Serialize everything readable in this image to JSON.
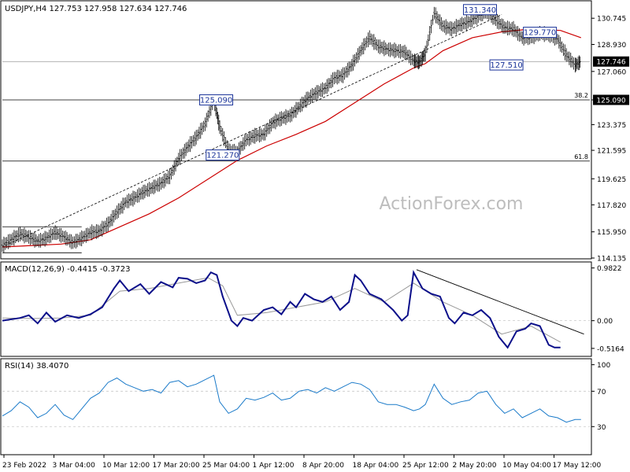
{
  "watermark": "ActionForex.com",
  "chart_data": [
    {
      "type": "line",
      "panel": "price",
      "header": "USDJPY,H4  127.753 127.958 127.634 127.746",
      "ylim": [
        114.135,
        131.9
      ],
      "y_ticks": [
        "130.745",
        "128.930",
        "127.060",
        "125.090",
        "123.375",
        "121.595",
        "119.625",
        "117.820",
        "115.950",
        "114.135"
      ],
      "current_price": "127.746",
      "retracement_price": "125.090",
      "levels": [
        {
          "label": "38.2",
          "value": 125.09
        },
        {
          "label": "61.8",
          "value": 120.85
        }
      ],
      "annotations": [
        {
          "text": "131.340",
          "x": 0.813,
          "y": 131.34
        },
        {
          "text": "129.770",
          "x": 0.915,
          "y": 129.77
        },
        {
          "text": "127.510",
          "x": 0.858,
          "y": 127.51
        },
        {
          "text": "125.090",
          "x": 0.364,
          "y": 125.09
        },
        {
          "text": "121.270",
          "x": 0.375,
          "y": 121.27
        }
      ],
      "price_series": [
        [
          0,
          115.0
        ],
        [
          0.015,
          115.4
        ],
        [
          0.03,
          115.8
        ],
        [
          0.045,
          115.6
        ],
        [
          0.06,
          115.3
        ],
        [
          0.075,
          115.5
        ],
        [
          0.09,
          115.9
        ],
        [
          0.105,
          115.6
        ],
        [
          0.12,
          115.2
        ],
        [
          0.135,
          115.5
        ],
        [
          0.15,
          115.9
        ],
        [
          0.165,
          116.0
        ],
        [
          0.18,
          116.5
        ],
        [
          0.195,
          117.3
        ],
        [
          0.21,
          118.0
        ],
        [
          0.225,
          118.3
        ],
        [
          0.24,
          118.7
        ],
        [
          0.255,
          119.0
        ],
        [
          0.27,
          119.3
        ],
        [
          0.285,
          119.8
        ],
        [
          0.3,
          121.0
        ],
        [
          0.315,
          121.8
        ],
        [
          0.33,
          122.5
        ],
        [
          0.345,
          123.4
        ],
        [
          0.36,
          125.1
        ],
        [
          0.37,
          123.2
        ],
        [
          0.385,
          121.6
        ],
        [
          0.4,
          121.5
        ],
        [
          0.415,
          122.3
        ],
        [
          0.43,
          122.6
        ],
        [
          0.445,
          122.7
        ],
        [
          0.46,
          123.5
        ],
        [
          0.475,
          123.8
        ],
        [
          0.49,
          124.0
        ],
        [
          0.505,
          124.6
        ],
        [
          0.52,
          125.2
        ],
        [
          0.535,
          125.6
        ],
        [
          0.55,
          125.9
        ],
        [
          0.565,
          126.6
        ],
        [
          0.58,
          126.8
        ],
        [
          0.595,
          127.5
        ],
        [
          0.61,
          128.5
        ],
        [
          0.625,
          129.4
        ],
        [
          0.64,
          128.8
        ],
        [
          0.655,
          128.6
        ],
        [
          0.67,
          128.5
        ],
        [
          0.685,
          128.4
        ],
        [
          0.7,
          127.8
        ],
        [
          0.71,
          127.7
        ],
        [
          0.72,
          128.3
        ],
        [
          0.735,
          131.1
        ],
        [
          0.75,
          130.2
        ],
        [
          0.765,
          130.0
        ],
        [
          0.78,
          130.3
        ],
        [
          0.795,
          130.5
        ],
        [
          0.81,
          130.9
        ],
        [
          0.825,
          131.2
        ],
        [
          0.84,
          130.6
        ],
        [
          0.855,
          130.1
        ],
        [
          0.87,
          130.0
        ],
        [
          0.885,
          129.4
        ],
        [
          0.9,
          129.4
        ],
        [
          0.915,
          129.7
        ],
        [
          0.93,
          129.6
        ],
        [
          0.945,
          129.3
        ],
        [
          0.96,
          128.2
        ],
        [
          0.975,
          127.5
        ],
        [
          0.985,
          127.75
        ]
      ],
      "ma_series": [
        [
          0,
          114.9
        ],
        [
          0.05,
          115.0
        ],
        [
          0.1,
          115.1
        ],
        [
          0.15,
          115.4
        ],
        [
          0.2,
          116.3
        ],
        [
          0.25,
          117.2
        ],
        [
          0.3,
          118.3
        ],
        [
          0.35,
          119.6
        ],
        [
          0.4,
          120.9
        ],
        [
          0.45,
          121.9
        ],
        [
          0.5,
          122.7
        ],
        [
          0.55,
          123.6
        ],
        [
          0.6,
          124.9
        ],
        [
          0.65,
          126.2
        ],
        [
          0.7,
          127.3
        ],
        [
          0.72,
          127.6
        ],
        [
          0.75,
          128.5
        ],
        [
          0.8,
          129.4
        ],
        [
          0.85,
          129.8
        ],
        [
          0.9,
          130.0
        ],
        [
          0.95,
          129.9
        ],
        [
          0.985,
          129.4
        ]
      ],
      "trendline": [
        [
          0.005,
          115.0
        ],
        [
          0.85,
          131.0
        ]
      ],
      "channel": [
        [
          [
            0.0,
            116.3
          ],
          [
            0.135,
            116.3
          ]
        ],
        [
          [
            0.0,
            114.5
          ],
          [
            0.135,
            114.5
          ]
        ]
      ]
    },
    {
      "type": "line",
      "panel": "macd",
      "header": "MACD(12,26,9) -0.4415 -0.3723",
      "ylim": [
        -0.65,
        1.05
      ],
      "y_ticks": [
        "0.9822",
        "0.00",
        "-0.5164"
      ],
      "macd_series": [
        [
          0,
          0.0
        ],
        [
          0.03,
          0.05
        ],
        [
          0.045,
          0.1
        ],
        [
          0.06,
          -0.05
        ],
        [
          0.075,
          0.15
        ],
        [
          0.09,
          -0.02
        ],
        [
          0.11,
          0.1
        ],
        [
          0.13,
          0.05
        ],
        [
          0.15,
          0.12
        ],
        [
          0.17,
          0.25
        ],
        [
          0.19,
          0.6
        ],
        [
          0.2,
          0.75
        ],
        [
          0.215,
          0.55
        ],
        [
          0.235,
          0.68
        ],
        [
          0.25,
          0.5
        ],
        [
          0.27,
          0.72
        ],
        [
          0.29,
          0.62
        ],
        [
          0.3,
          0.8
        ],
        [
          0.315,
          0.78
        ],
        [
          0.33,
          0.7
        ],
        [
          0.345,
          0.75
        ],
        [
          0.355,
          0.9
        ],
        [
          0.365,
          0.85
        ],
        [
          0.375,
          0.45
        ],
        [
          0.39,
          0.0
        ],
        [
          0.4,
          -0.1
        ],
        [
          0.41,
          0.05
        ],
        [
          0.425,
          0.0
        ],
        [
          0.445,
          0.2
        ],
        [
          0.46,
          0.25
        ],
        [
          0.475,
          0.12
        ],
        [
          0.49,
          0.35
        ],
        [
          0.5,
          0.25
        ],
        [
          0.515,
          0.5
        ],
        [
          0.53,
          0.4
        ],
        [
          0.545,
          0.35
        ],
        [
          0.56,
          0.45
        ],
        [
          0.575,
          0.2
        ],
        [
          0.59,
          0.35
        ],
        [
          0.6,
          0.85
        ],
        [
          0.61,
          0.75
        ],
        [
          0.625,
          0.5
        ],
        [
          0.645,
          0.4
        ],
        [
          0.665,
          0.2
        ],
        [
          0.68,
          0.0
        ],
        [
          0.69,
          0.1
        ],
        [
          0.7,
          0.9
        ],
        [
          0.715,
          0.6
        ],
        [
          0.73,
          0.5
        ],
        [
          0.745,
          0.45
        ],
        [
          0.76,
          0.05
        ],
        [
          0.77,
          -0.05
        ],
        [
          0.785,
          0.15
        ],
        [
          0.8,
          0.1
        ],
        [
          0.815,
          0.2
        ],
        [
          0.83,
          0.05
        ],
        [
          0.845,
          -0.3
        ],
        [
          0.86,
          -0.5
        ],
        [
          0.875,
          -0.2
        ],
        [
          0.89,
          -0.15
        ],
        [
          0.9,
          -0.05
        ],
        [
          0.915,
          -0.1
        ],
        [
          0.93,
          -0.45
        ],
        [
          0.94,
          -0.5
        ],
        [
          0.95,
          -0.5
        ]
      ],
      "signal_series": [
        [
          0,
          0.05
        ],
        [
          0.05,
          0.04
        ],
        [
          0.1,
          0.05
        ],
        [
          0.15,
          0.1
        ],
        [
          0.2,
          0.55
        ],
        [
          0.25,
          0.6
        ],
        [
          0.3,
          0.7
        ],
        [
          0.35,
          0.8
        ],
        [
          0.375,
          0.65
        ],
        [
          0.4,
          0.1
        ],
        [
          0.45,
          0.15
        ],
        [
          0.5,
          0.25
        ],
        [
          0.55,
          0.35
        ],
        [
          0.6,
          0.6
        ],
        [
          0.65,
          0.35
        ],
        [
          0.7,
          0.7
        ],
        [
          0.75,
          0.35
        ],
        [
          0.8,
          0.1
        ],
        [
          0.85,
          -0.25
        ],
        [
          0.9,
          -0.1
        ],
        [
          0.95,
          -0.4
        ]
      ],
      "trendline": [
        [
          0.705,
          0.95
        ],
        [
          0.99,
          -0.25
        ]
      ]
    },
    {
      "type": "line",
      "panel": "rsi",
      "header": "RSI(14) 38.4070",
      "ylim": [
        0,
        105
      ],
      "y_ticks": [
        "100",
        "70",
        "30"
      ],
      "levels": [
        70,
        30
      ],
      "rsi_series": [
        [
          0,
          42
        ],
        [
          0.015,
          48
        ],
        [
          0.03,
          58
        ],
        [
          0.045,
          52
        ],
        [
          0.06,
          40
        ],
        [
          0.075,
          45
        ],
        [
          0.09,
          55
        ],
        [
          0.105,
          43
        ],
        [
          0.12,
          38
        ],
        [
          0.135,
          50
        ],
        [
          0.15,
          62
        ],
        [
          0.165,
          68
        ],
        [
          0.18,
          80
        ],
        [
          0.195,
          85
        ],
        [
          0.21,
          78
        ],
        [
          0.225,
          74
        ],
        [
          0.24,
          70
        ],
        [
          0.255,
          72
        ],
        [
          0.27,
          68
        ],
        [
          0.285,
          80
        ],
        [
          0.3,
          82
        ],
        [
          0.315,
          75
        ],
        [
          0.33,
          78
        ],
        [
          0.345,
          83
        ],
        [
          0.36,
          88
        ],
        [
          0.37,
          58
        ],
        [
          0.385,
          45
        ],
        [
          0.4,
          50
        ],
        [
          0.415,
          62
        ],
        [
          0.43,
          60
        ],
        [
          0.445,
          63
        ],
        [
          0.46,
          68
        ],
        [
          0.475,
          60
        ],
        [
          0.49,
          62
        ],
        [
          0.505,
          70
        ],
        [
          0.52,
          72
        ],
        [
          0.535,
          68
        ],
        [
          0.55,
          74
        ],
        [
          0.565,
          70
        ],
        [
          0.58,
          75
        ],
        [
          0.595,
          80
        ],
        [
          0.61,
          78
        ],
        [
          0.625,
          72
        ],
        [
          0.64,
          58
        ],
        [
          0.655,
          55
        ],
        [
          0.67,
          55
        ],
        [
          0.685,
          52
        ],
        [
          0.7,
          48
        ],
        [
          0.71,
          50
        ],
        [
          0.72,
          55
        ],
        [
          0.735,
          78
        ],
        [
          0.75,
          62
        ],
        [
          0.765,
          55
        ],
        [
          0.78,
          58
        ],
        [
          0.795,
          60
        ],
        [
          0.81,
          68
        ],
        [
          0.825,
          70
        ],
        [
          0.84,
          55
        ],
        [
          0.855,
          45
        ],
        [
          0.87,
          50
        ],
        [
          0.885,
          40
        ],
        [
          0.9,
          45
        ],
        [
          0.915,
          50
        ],
        [
          0.93,
          42
        ],
        [
          0.945,
          40
        ],
        [
          0.96,
          35
        ],
        [
          0.975,
          38
        ],
        [
          0.985,
          38
        ]
      ]
    }
  ],
  "x_axis_labels": [
    "23 Feb 2022",
    "3 Mar 04:00",
    "10 Mar 12:00",
    "17 Mar 20:00",
    "25 Mar 04:00",
    "1 Apr 12:00",
    "8 Apr 20:00",
    "18 Apr 04:00",
    "25 Apr 12:00",
    "2 May 20:00",
    "10 May 04:00",
    "17 May 12:00"
  ],
  "colors": {
    "price": "#000000",
    "ma": "#cc0000",
    "macd": "#0b0f8a",
    "signal": "#999999",
    "rsi": "#1a7ac9",
    "grid": "#c8c8c8",
    "label_box": "#1a3399",
    "current_bg": "#000000"
  }
}
